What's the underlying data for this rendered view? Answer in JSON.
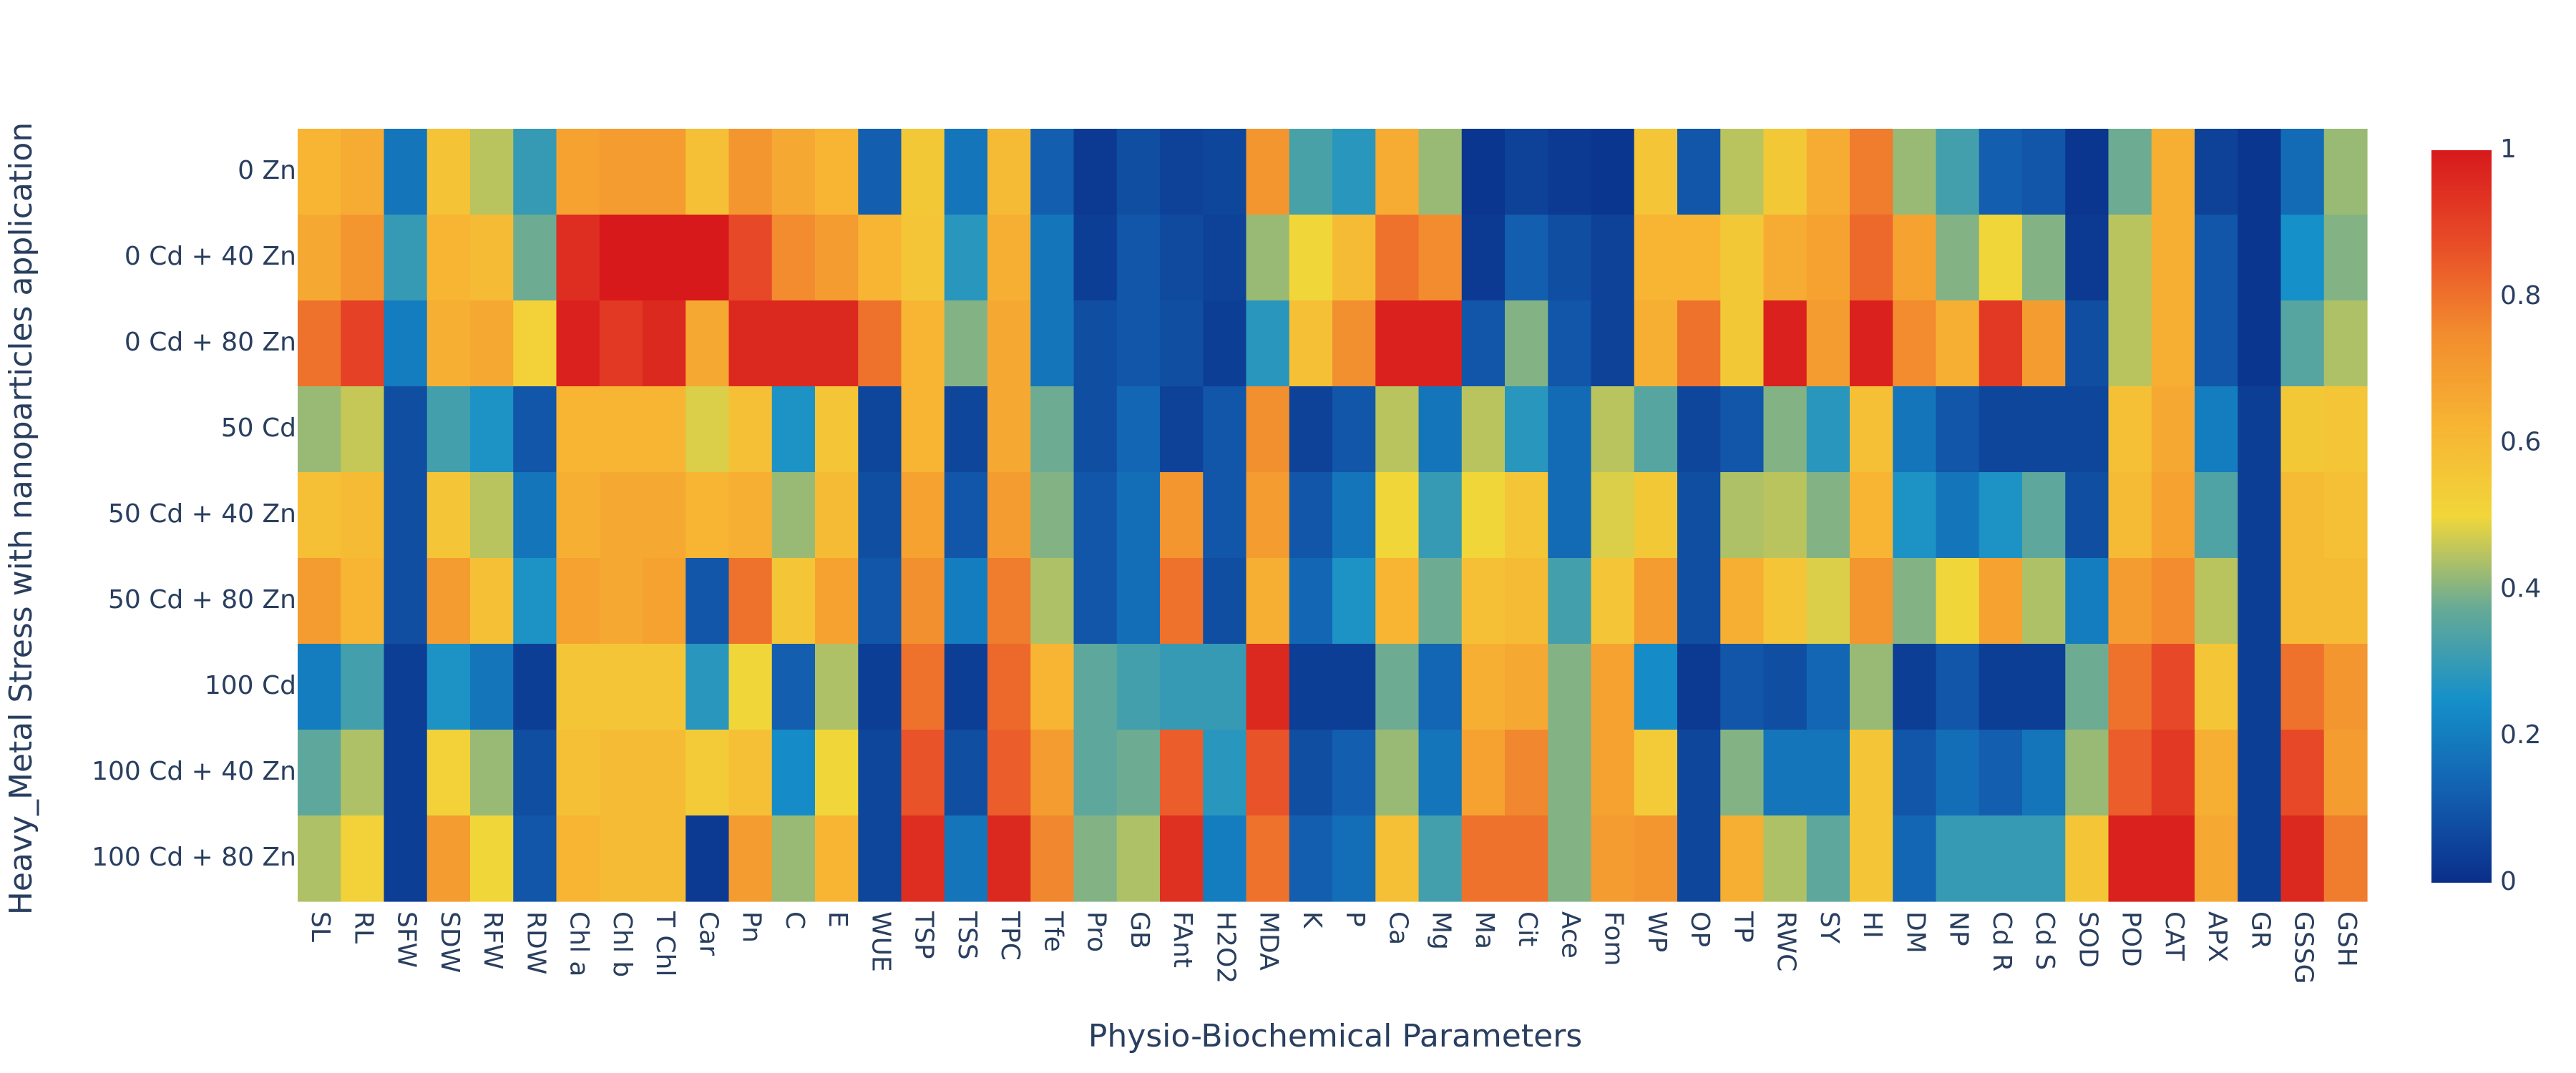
{
  "chart_data": {
    "type": "heatmap",
    "title": "",
    "xlabel": "Physio-Biochemical Parameters",
    "ylabel": "Heavy_Metal Stress with nanoparticles application",
    "x": [
      "SL",
      "RL",
      "SFW",
      "SDW",
      "RFW",
      "RDW",
      "Chl a",
      "Chl b",
      "T Chl",
      "Car",
      "Pn",
      "C",
      "E",
      "WUE",
      "TSP",
      "TSS",
      "TPC",
      "Tfe",
      "Pro",
      "GB",
      "FAnt",
      "H2O2",
      "MDA",
      "K",
      "P",
      "Ca",
      "Mg",
      "Ma",
      "Cit",
      "Ace",
      "Fom",
      "WP",
      "OP",
      "TP",
      "RWC",
      "SY",
      "HI",
      "DM",
      "NP",
      "Cd R",
      "Cd S",
      "SOD",
      "POD",
      "CAT",
      "APX",
      "GR",
      "GSSG",
      "GSH"
    ],
    "y": [
      "0 Zn",
      "0 Cd + 40 Zn",
      "0 Cd + 80 Zn",
      "50 Cd",
      "50 Cd + 40 Zn",
      "50 Cd + 80 Zn",
      "100 Cd",
      "100 Cd + 40 Zn",
      "100 Cd + 80 Zn"
    ],
    "z": [
      [
        0.62,
        0.65,
        0.18,
        0.57,
        0.45,
        0.3,
        0.68,
        0.7,
        0.7,
        0.58,
        0.72,
        0.66,
        0.62,
        0.12,
        0.55,
        0.18,
        0.6,
        0.12,
        0.03,
        0.08,
        0.05,
        0.06,
        0.72,
        0.33,
        0.28,
        0.65,
        0.42,
        0.02,
        0.05,
        0.03,
        0.02,
        0.56,
        0.1,
        0.45,
        0.55,
        0.65,
        0.78,
        0.42,
        0.32,
        0.12,
        0.1,
        0.02,
        0.38,
        0.64,
        0.05,
        0.02,
        0.15,
        0.42
      ],
      [
        0.66,
        0.72,
        0.3,
        0.62,
        0.6,
        0.38,
        0.95,
        1.0,
        1.0,
        1.0,
        0.88,
        0.75,
        0.7,
        0.62,
        0.56,
        0.28,
        0.64,
        0.18,
        0.04,
        0.1,
        0.07,
        0.05,
        0.42,
        0.5,
        0.6,
        0.8,
        0.75,
        0.03,
        0.12,
        0.08,
        0.05,
        0.62,
        0.62,
        0.55,
        0.65,
        0.68,
        0.82,
        0.68,
        0.4,
        0.5,
        0.4,
        0.03,
        0.45,
        0.64,
        0.1,
        0.02,
        0.25,
        0.4
      ],
      [
        0.8,
        0.9,
        0.2,
        0.64,
        0.66,
        0.52,
        0.98,
        0.92,
        0.96,
        0.66,
        0.96,
        0.96,
        0.96,
        0.8,
        0.62,
        0.4,
        0.66,
        0.18,
        0.08,
        0.1,
        0.08,
        0.04,
        0.28,
        0.58,
        0.74,
        0.98,
        0.98,
        0.1,
        0.4,
        0.1,
        0.05,
        0.64,
        0.8,
        0.55,
        0.98,
        0.7,
        0.98,
        0.75,
        0.64,
        0.92,
        0.7,
        0.08,
        0.45,
        0.64,
        0.1,
        0.02,
        0.35,
        0.44
      ],
      [
        0.42,
        0.46,
        0.08,
        0.32,
        0.26,
        0.1,
        0.62,
        0.62,
        0.62,
        0.48,
        0.58,
        0.26,
        0.56,
        0.06,
        0.62,
        0.06,
        0.66,
        0.38,
        0.08,
        0.14,
        0.05,
        0.1,
        0.74,
        0.05,
        0.1,
        0.45,
        0.18,
        0.45,
        0.28,
        0.15,
        0.45,
        0.35,
        0.06,
        0.1,
        0.4,
        0.28,
        0.58,
        0.18,
        0.1,
        0.06,
        0.06,
        0.06,
        0.58,
        0.66,
        0.2,
        0.04,
        0.55,
        0.56
      ],
      [
        0.58,
        0.6,
        0.08,
        0.56,
        0.45,
        0.18,
        0.64,
        0.66,
        0.66,
        0.62,
        0.64,
        0.42,
        0.6,
        0.08,
        0.68,
        0.1,
        0.7,
        0.4,
        0.1,
        0.16,
        0.72,
        0.1,
        0.7,
        0.1,
        0.18,
        0.5,
        0.3,
        0.5,
        0.56,
        0.15,
        0.48,
        0.55,
        0.08,
        0.44,
        0.45,
        0.4,
        0.62,
        0.26,
        0.18,
        0.26,
        0.36,
        0.08,
        0.6,
        0.68,
        0.34,
        0.04,
        0.6,
        0.58
      ],
      [
        0.7,
        0.62,
        0.08,
        0.7,
        0.58,
        0.26,
        0.68,
        0.66,
        0.68,
        0.1,
        0.8,
        0.56,
        0.68,
        0.1,
        0.74,
        0.2,
        0.78,
        0.44,
        0.1,
        0.16,
        0.8,
        0.08,
        0.64,
        0.14,
        0.26,
        0.62,
        0.38,
        0.58,
        0.6,
        0.32,
        0.56,
        0.7,
        0.08,
        0.64,
        0.56,
        0.48,
        0.72,
        0.4,
        0.5,
        0.68,
        0.44,
        0.2,
        0.7,
        0.75,
        0.45,
        0.04,
        0.6,
        0.6
      ],
      [
        0.2,
        0.32,
        0.04,
        0.26,
        0.18,
        0.04,
        0.56,
        0.56,
        0.56,
        0.28,
        0.5,
        0.12,
        0.44,
        0.04,
        0.8,
        0.04,
        0.82,
        0.62,
        0.36,
        0.32,
        0.3,
        0.3,
        0.96,
        0.04,
        0.04,
        0.38,
        0.14,
        0.64,
        0.66,
        0.4,
        0.68,
        0.24,
        0.03,
        0.1,
        0.08,
        0.14,
        0.42,
        0.04,
        0.1,
        0.04,
        0.04,
        0.38,
        0.8,
        0.88,
        0.56,
        0.04,
        0.8,
        0.72
      ],
      [
        0.36,
        0.44,
        0.04,
        0.52,
        0.42,
        0.08,
        0.58,
        0.6,
        0.6,
        0.54,
        0.58,
        0.24,
        0.5,
        0.06,
        0.86,
        0.08,
        0.84,
        0.7,
        0.36,
        0.38,
        0.84,
        0.28,
        0.86,
        0.08,
        0.12,
        0.42,
        0.18,
        0.68,
        0.76,
        0.4,
        0.68,
        0.54,
        0.06,
        0.4,
        0.18,
        0.18,
        0.56,
        0.1,
        0.16,
        0.12,
        0.18,
        0.42,
        0.84,
        0.92,
        0.64,
        0.04,
        0.88,
        0.7
      ],
      [
        0.44,
        0.52,
        0.04,
        0.7,
        0.5,
        0.1,
        0.62,
        0.6,
        0.6,
        0.03,
        0.7,
        0.42,
        0.62,
        0.06,
        0.95,
        0.18,
        0.96,
        0.76,
        0.4,
        0.44,
        0.94,
        0.2,
        0.8,
        0.12,
        0.16,
        0.58,
        0.32,
        0.8,
        0.8,
        0.4,
        0.7,
        0.72,
        0.06,
        0.64,
        0.44,
        0.36,
        0.56,
        0.14,
        0.3,
        0.3,
        0.3,
        0.56,
        0.98,
        0.98,
        0.66,
        0.04,
        0.96,
        0.78
      ]
    ],
    "colorscale": [
      [
        0.0,
        "#0a2e8a"
      ],
      [
        0.125,
        "#1360b0"
      ],
      [
        0.25,
        "#1590c9"
      ],
      [
        0.375,
        "#67aa96"
      ],
      [
        0.5,
        "#f1d63a"
      ],
      [
        0.625,
        "#f7b433"
      ],
      [
        0.75,
        "#f28c2e"
      ],
      [
        0.875,
        "#e84b28"
      ],
      [
        1.0,
        "#d7191c"
      ]
    ],
    "zlim": [
      0,
      1
    ],
    "colorbar_ticks": [
      "0",
      "0.2",
      "0.4",
      "0.6",
      "0.8",
      "1"
    ],
    "colorbar_tick_values": [
      0,
      0.2,
      0.4,
      0.6,
      0.8,
      1
    ]
  }
}
